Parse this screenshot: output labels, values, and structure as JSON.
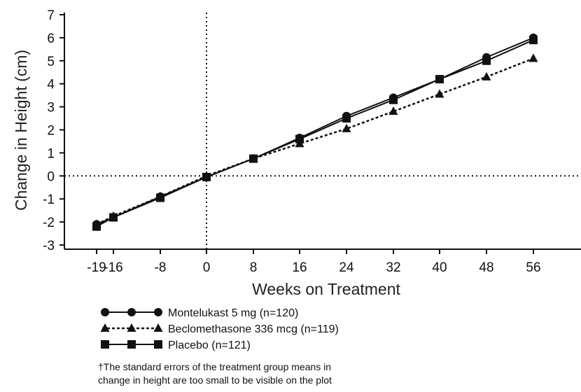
{
  "chart_data": {
    "type": "line",
    "xlabel": "Weeks on Treatment",
    "ylabel": "Change in Height (cm)",
    "x": [
      -19,
      -16,
      -8,
      0,
      8,
      16,
      24,
      32,
      40,
      48,
      56
    ],
    "xticks": [
      "-19",
      "-16",
      "-8",
      "0",
      "8",
      "16",
      "24",
      "32",
      "40",
      "48",
      "56"
    ],
    "yticks": [
      "-3",
      "-2",
      "-1",
      "0",
      "1",
      "2",
      "3",
      "4",
      "5",
      "6",
      "7"
    ],
    "ylim": [
      -3,
      7
    ],
    "reference_lines": {
      "x": 0,
      "y": 0,
      "style": "dotted"
    },
    "grid": false,
    "legend_position": "below",
    "series": [
      {
        "name": "Montelukast 5 mg (n=120)",
        "marker": "circle",
        "line_style": "solid",
        "values": [
          -2.1,
          -1.8,
          -0.9,
          -0.05,
          0.75,
          1.65,
          2.6,
          3.4,
          4.2,
          5.15,
          6.0
        ]
      },
      {
        "name": "Beclomethasone 336 mcg (n=119)",
        "marker": "triangle",
        "line_style": "dotted",
        "values": [
          -2.1,
          -1.75,
          -0.9,
          0.0,
          0.75,
          1.4,
          2.05,
          2.8,
          3.55,
          4.3,
          5.1
        ]
      },
      {
        "name": "Placebo (n=121)",
        "marker": "square",
        "line_style": "solid",
        "values": [
          -2.2,
          -1.8,
          -0.95,
          -0.05,
          0.75,
          1.6,
          2.5,
          3.3,
          4.2,
          5.0,
          5.9
        ]
      }
    ]
  },
  "footnote": {
    "line1": "†The standard errors of the treatment group means in",
    "line2": "change in height are too small to be visible on the plot"
  }
}
